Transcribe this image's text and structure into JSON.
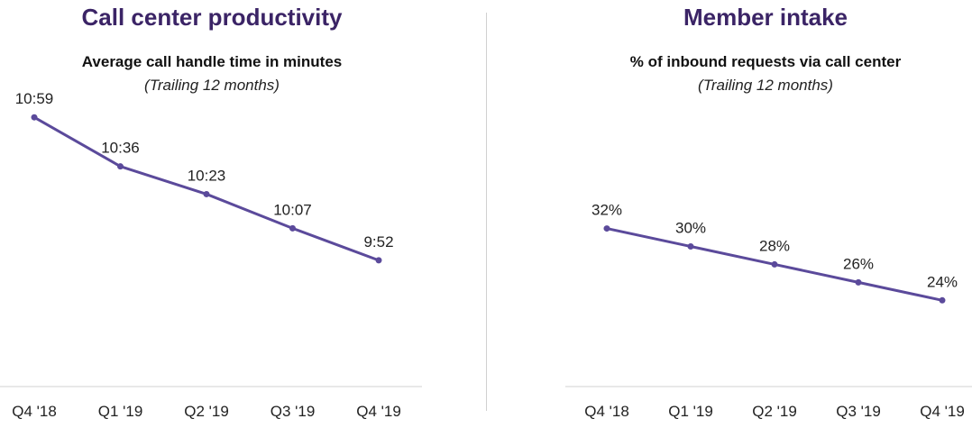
{
  "panels": [
    {
      "title": "Call center productivity",
      "subtitle": "Average call handle time in minutes",
      "note": "(Trailing 12 months)"
    },
    {
      "title": "Member intake",
      "subtitle": "% of inbound requests via call center",
      "note": "(Trailing 12 months)"
    }
  ],
  "colors": {
    "title": "#3b2466",
    "series": "#5b4a9b",
    "axis": "#d0d0d0"
  },
  "chart_data": [
    {
      "type": "line",
      "title": "Average call handle time in minutes",
      "subtitle": "(Trailing 12 months)",
      "categories": [
        "Q4 '18",
        "Q1 '19",
        "Q2 '19",
        "Q3 '19",
        "Q4 '19"
      ],
      "values_seconds": [
        659,
        636,
        623,
        607,
        592
      ],
      "data_labels": [
        "10:59",
        "10:36",
        "10:23",
        "10:07",
        "9:52"
      ],
      "ylim_seconds": [
        540,
        665
      ],
      "grid": false,
      "legend": "none"
    },
    {
      "type": "line",
      "title": "% of inbound requests via call center",
      "subtitle": "(Trailing 12 months)",
      "categories": [
        "Q4 '18",
        "Q1 '19",
        "Q2 '19",
        "Q3 '19",
        "Q4 '19"
      ],
      "values": [
        32,
        30,
        28,
        26,
        24
      ],
      "data_labels": [
        "32%",
        "30%",
        "28%",
        "26%",
        "24%"
      ],
      "ylim": [
        15,
        45
      ],
      "grid": false,
      "legend": "none"
    }
  ]
}
